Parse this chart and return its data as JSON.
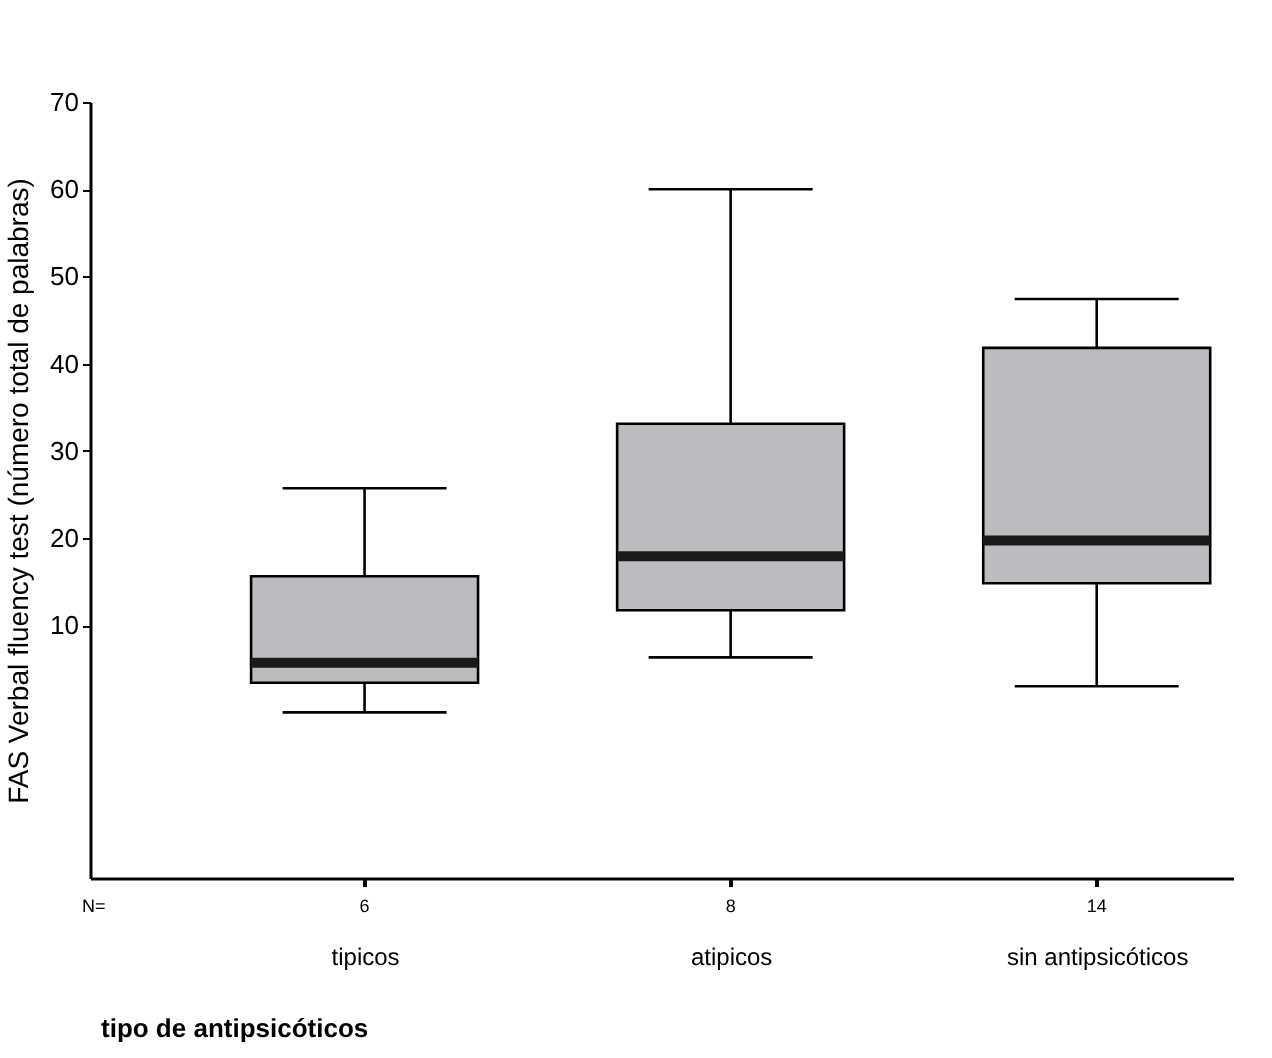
{
  "chart_data": {
    "type": "box",
    "xlabel": "tipo de antipsicóticos",
    "ylabel": "FAS Verbal fluency test (número total de palabras)",
    "categories": [
      "tipicos",
      "atipicos",
      "sin antipsicóticos"
    ],
    "boxes": [
      {
        "low": 0,
        "q1": 3.4,
        "median": 5.7,
        "q3": 15.6,
        "high": 25.7
      },
      {
        "low": 6.3,
        "q1": 11.7,
        "median": 17.9,
        "q3": 33.1,
        "high": 60
      },
      {
        "low": 3,
        "q1": 14.8,
        "median": 19.7,
        "q3": 41.8,
        "high": 47.4
      }
    ],
    "color": "#bbbcbf",
    "ylim": [
      -19,
      70
    ],
    "yticks": [
      10,
      20,
      30,
      40,
      50,
      60,
      70
    ],
    "grid": false,
    "annotations": [
      "N=",
      "6",
      "8",
      "14"
    ]
  }
}
